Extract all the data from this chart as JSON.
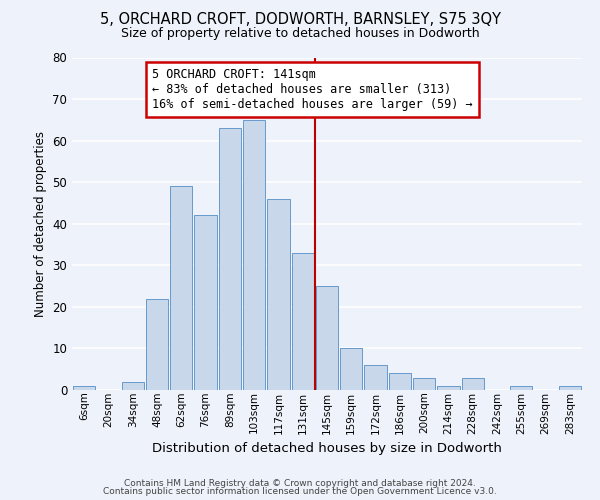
{
  "title": "5, ORCHARD CROFT, DODWORTH, BARNSLEY, S75 3QY",
  "subtitle": "Size of property relative to detached houses in Dodworth",
  "xlabel": "Distribution of detached houses by size in Dodworth",
  "ylabel": "Number of detached properties",
  "bar_labels": [
    "6sqm",
    "20sqm",
    "34sqm",
    "48sqm",
    "62sqm",
    "76sqm",
    "89sqm",
    "103sqm",
    "117sqm",
    "131sqm",
    "145sqm",
    "159sqm",
    "172sqm",
    "186sqm",
    "200sqm",
    "214sqm",
    "228sqm",
    "242sqm",
    "255sqm",
    "269sqm",
    "283sqm"
  ],
  "bar_values": [
    1,
    0,
    2,
    22,
    49,
    42,
    63,
    65,
    46,
    33,
    25,
    10,
    6,
    4,
    3,
    1,
    3,
    0,
    1,
    0,
    1
  ],
  "bar_color": "#c8d8ea",
  "bar_edge_color": "#6699cc",
  "background_color": "#eef2fa",
  "grid_color": "#ffffff",
  "marker_index": 9.5,
  "marker_color": "#bb0000",
  "annotation_text": "5 ORCHARD CROFT: 141sqm\n← 83% of detached houses are smaller (313)\n16% of semi-detached houses are larger (59) →",
  "annotation_box_color": "#cc0000",
  "ylim": [
    0,
    80
  ],
  "yticks": [
    0,
    10,
    20,
    30,
    40,
    50,
    60,
    70,
    80
  ],
  "footer_line1": "Contains HM Land Registry data © Crown copyright and database right 2024.",
  "footer_line2": "Contains public sector information licensed under the Open Government Licence v3.0."
}
